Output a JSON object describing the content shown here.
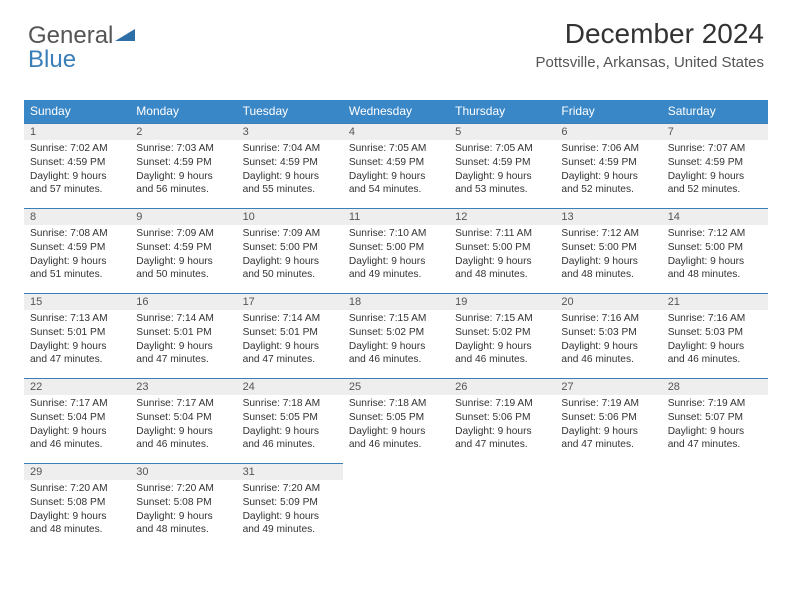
{
  "logo": {
    "word1": "General",
    "word2": "Blue"
  },
  "header": {
    "title": "December 2024",
    "location": "Pottsville, Arkansas, United States"
  },
  "calendar": {
    "day_headers": [
      "Sunday",
      "Monday",
      "Tuesday",
      "Wednesday",
      "Thursday",
      "Friday",
      "Saturday"
    ],
    "colors": {
      "header_bg": "#3a87c7",
      "header_fg": "#ffffff",
      "daynum_bg": "#eeeeee",
      "rule": "#3a7fb8"
    },
    "weeks": [
      [
        {
          "n": "1",
          "l1": "Sunrise: 7:02 AM",
          "l2": "Sunset: 4:59 PM",
          "l3": "Daylight: 9 hours",
          "l4": "and 57 minutes."
        },
        {
          "n": "2",
          "l1": "Sunrise: 7:03 AM",
          "l2": "Sunset: 4:59 PM",
          "l3": "Daylight: 9 hours",
          "l4": "and 56 minutes."
        },
        {
          "n": "3",
          "l1": "Sunrise: 7:04 AM",
          "l2": "Sunset: 4:59 PM",
          "l3": "Daylight: 9 hours",
          "l4": "and 55 minutes."
        },
        {
          "n": "4",
          "l1": "Sunrise: 7:05 AM",
          "l2": "Sunset: 4:59 PM",
          "l3": "Daylight: 9 hours",
          "l4": "and 54 minutes."
        },
        {
          "n": "5",
          "l1": "Sunrise: 7:05 AM",
          "l2": "Sunset: 4:59 PM",
          "l3": "Daylight: 9 hours",
          "l4": "and 53 minutes."
        },
        {
          "n": "6",
          "l1": "Sunrise: 7:06 AM",
          "l2": "Sunset: 4:59 PM",
          "l3": "Daylight: 9 hours",
          "l4": "and 52 minutes."
        },
        {
          "n": "7",
          "l1": "Sunrise: 7:07 AM",
          "l2": "Sunset: 4:59 PM",
          "l3": "Daylight: 9 hours",
          "l4": "and 52 minutes."
        }
      ],
      [
        {
          "n": "8",
          "l1": "Sunrise: 7:08 AM",
          "l2": "Sunset: 4:59 PM",
          "l3": "Daylight: 9 hours",
          "l4": "and 51 minutes."
        },
        {
          "n": "9",
          "l1": "Sunrise: 7:09 AM",
          "l2": "Sunset: 4:59 PM",
          "l3": "Daylight: 9 hours",
          "l4": "and 50 minutes."
        },
        {
          "n": "10",
          "l1": "Sunrise: 7:09 AM",
          "l2": "Sunset: 5:00 PM",
          "l3": "Daylight: 9 hours",
          "l4": "and 50 minutes."
        },
        {
          "n": "11",
          "l1": "Sunrise: 7:10 AM",
          "l2": "Sunset: 5:00 PM",
          "l3": "Daylight: 9 hours",
          "l4": "and 49 minutes."
        },
        {
          "n": "12",
          "l1": "Sunrise: 7:11 AM",
          "l2": "Sunset: 5:00 PM",
          "l3": "Daylight: 9 hours",
          "l4": "and 48 minutes."
        },
        {
          "n": "13",
          "l1": "Sunrise: 7:12 AM",
          "l2": "Sunset: 5:00 PM",
          "l3": "Daylight: 9 hours",
          "l4": "and 48 minutes."
        },
        {
          "n": "14",
          "l1": "Sunrise: 7:12 AM",
          "l2": "Sunset: 5:00 PM",
          "l3": "Daylight: 9 hours",
          "l4": "and 48 minutes."
        }
      ],
      [
        {
          "n": "15",
          "l1": "Sunrise: 7:13 AM",
          "l2": "Sunset: 5:01 PM",
          "l3": "Daylight: 9 hours",
          "l4": "and 47 minutes."
        },
        {
          "n": "16",
          "l1": "Sunrise: 7:14 AM",
          "l2": "Sunset: 5:01 PM",
          "l3": "Daylight: 9 hours",
          "l4": "and 47 minutes."
        },
        {
          "n": "17",
          "l1": "Sunrise: 7:14 AM",
          "l2": "Sunset: 5:01 PM",
          "l3": "Daylight: 9 hours",
          "l4": "and 47 minutes."
        },
        {
          "n": "18",
          "l1": "Sunrise: 7:15 AM",
          "l2": "Sunset: 5:02 PM",
          "l3": "Daylight: 9 hours",
          "l4": "and 46 minutes."
        },
        {
          "n": "19",
          "l1": "Sunrise: 7:15 AM",
          "l2": "Sunset: 5:02 PM",
          "l3": "Daylight: 9 hours",
          "l4": "and 46 minutes."
        },
        {
          "n": "20",
          "l1": "Sunrise: 7:16 AM",
          "l2": "Sunset: 5:03 PM",
          "l3": "Daylight: 9 hours",
          "l4": "and 46 minutes."
        },
        {
          "n": "21",
          "l1": "Sunrise: 7:16 AM",
          "l2": "Sunset: 5:03 PM",
          "l3": "Daylight: 9 hours",
          "l4": "and 46 minutes."
        }
      ],
      [
        {
          "n": "22",
          "l1": "Sunrise: 7:17 AM",
          "l2": "Sunset: 5:04 PM",
          "l3": "Daylight: 9 hours",
          "l4": "and 46 minutes."
        },
        {
          "n": "23",
          "l1": "Sunrise: 7:17 AM",
          "l2": "Sunset: 5:04 PM",
          "l3": "Daylight: 9 hours",
          "l4": "and 46 minutes."
        },
        {
          "n": "24",
          "l1": "Sunrise: 7:18 AM",
          "l2": "Sunset: 5:05 PM",
          "l3": "Daylight: 9 hours",
          "l4": "and 46 minutes."
        },
        {
          "n": "25",
          "l1": "Sunrise: 7:18 AM",
          "l2": "Sunset: 5:05 PM",
          "l3": "Daylight: 9 hours",
          "l4": "and 46 minutes."
        },
        {
          "n": "26",
          "l1": "Sunrise: 7:19 AM",
          "l2": "Sunset: 5:06 PM",
          "l3": "Daylight: 9 hours",
          "l4": "and 47 minutes."
        },
        {
          "n": "27",
          "l1": "Sunrise: 7:19 AM",
          "l2": "Sunset: 5:06 PM",
          "l3": "Daylight: 9 hours",
          "l4": "and 47 minutes."
        },
        {
          "n": "28",
          "l1": "Sunrise: 7:19 AM",
          "l2": "Sunset: 5:07 PM",
          "l3": "Daylight: 9 hours",
          "l4": "and 47 minutes."
        }
      ],
      [
        {
          "n": "29",
          "l1": "Sunrise: 7:20 AM",
          "l2": "Sunset: 5:08 PM",
          "l3": "Daylight: 9 hours",
          "l4": "and 48 minutes."
        },
        {
          "n": "30",
          "l1": "Sunrise: 7:20 AM",
          "l2": "Sunset: 5:08 PM",
          "l3": "Daylight: 9 hours",
          "l4": "and 48 minutes."
        },
        {
          "n": "31",
          "l1": "Sunrise: 7:20 AM",
          "l2": "Sunset: 5:09 PM",
          "l3": "Daylight: 9 hours",
          "l4": "and 49 minutes."
        },
        {
          "empty": true
        },
        {
          "empty": true
        },
        {
          "empty": true
        },
        {
          "empty": true
        }
      ]
    ]
  }
}
